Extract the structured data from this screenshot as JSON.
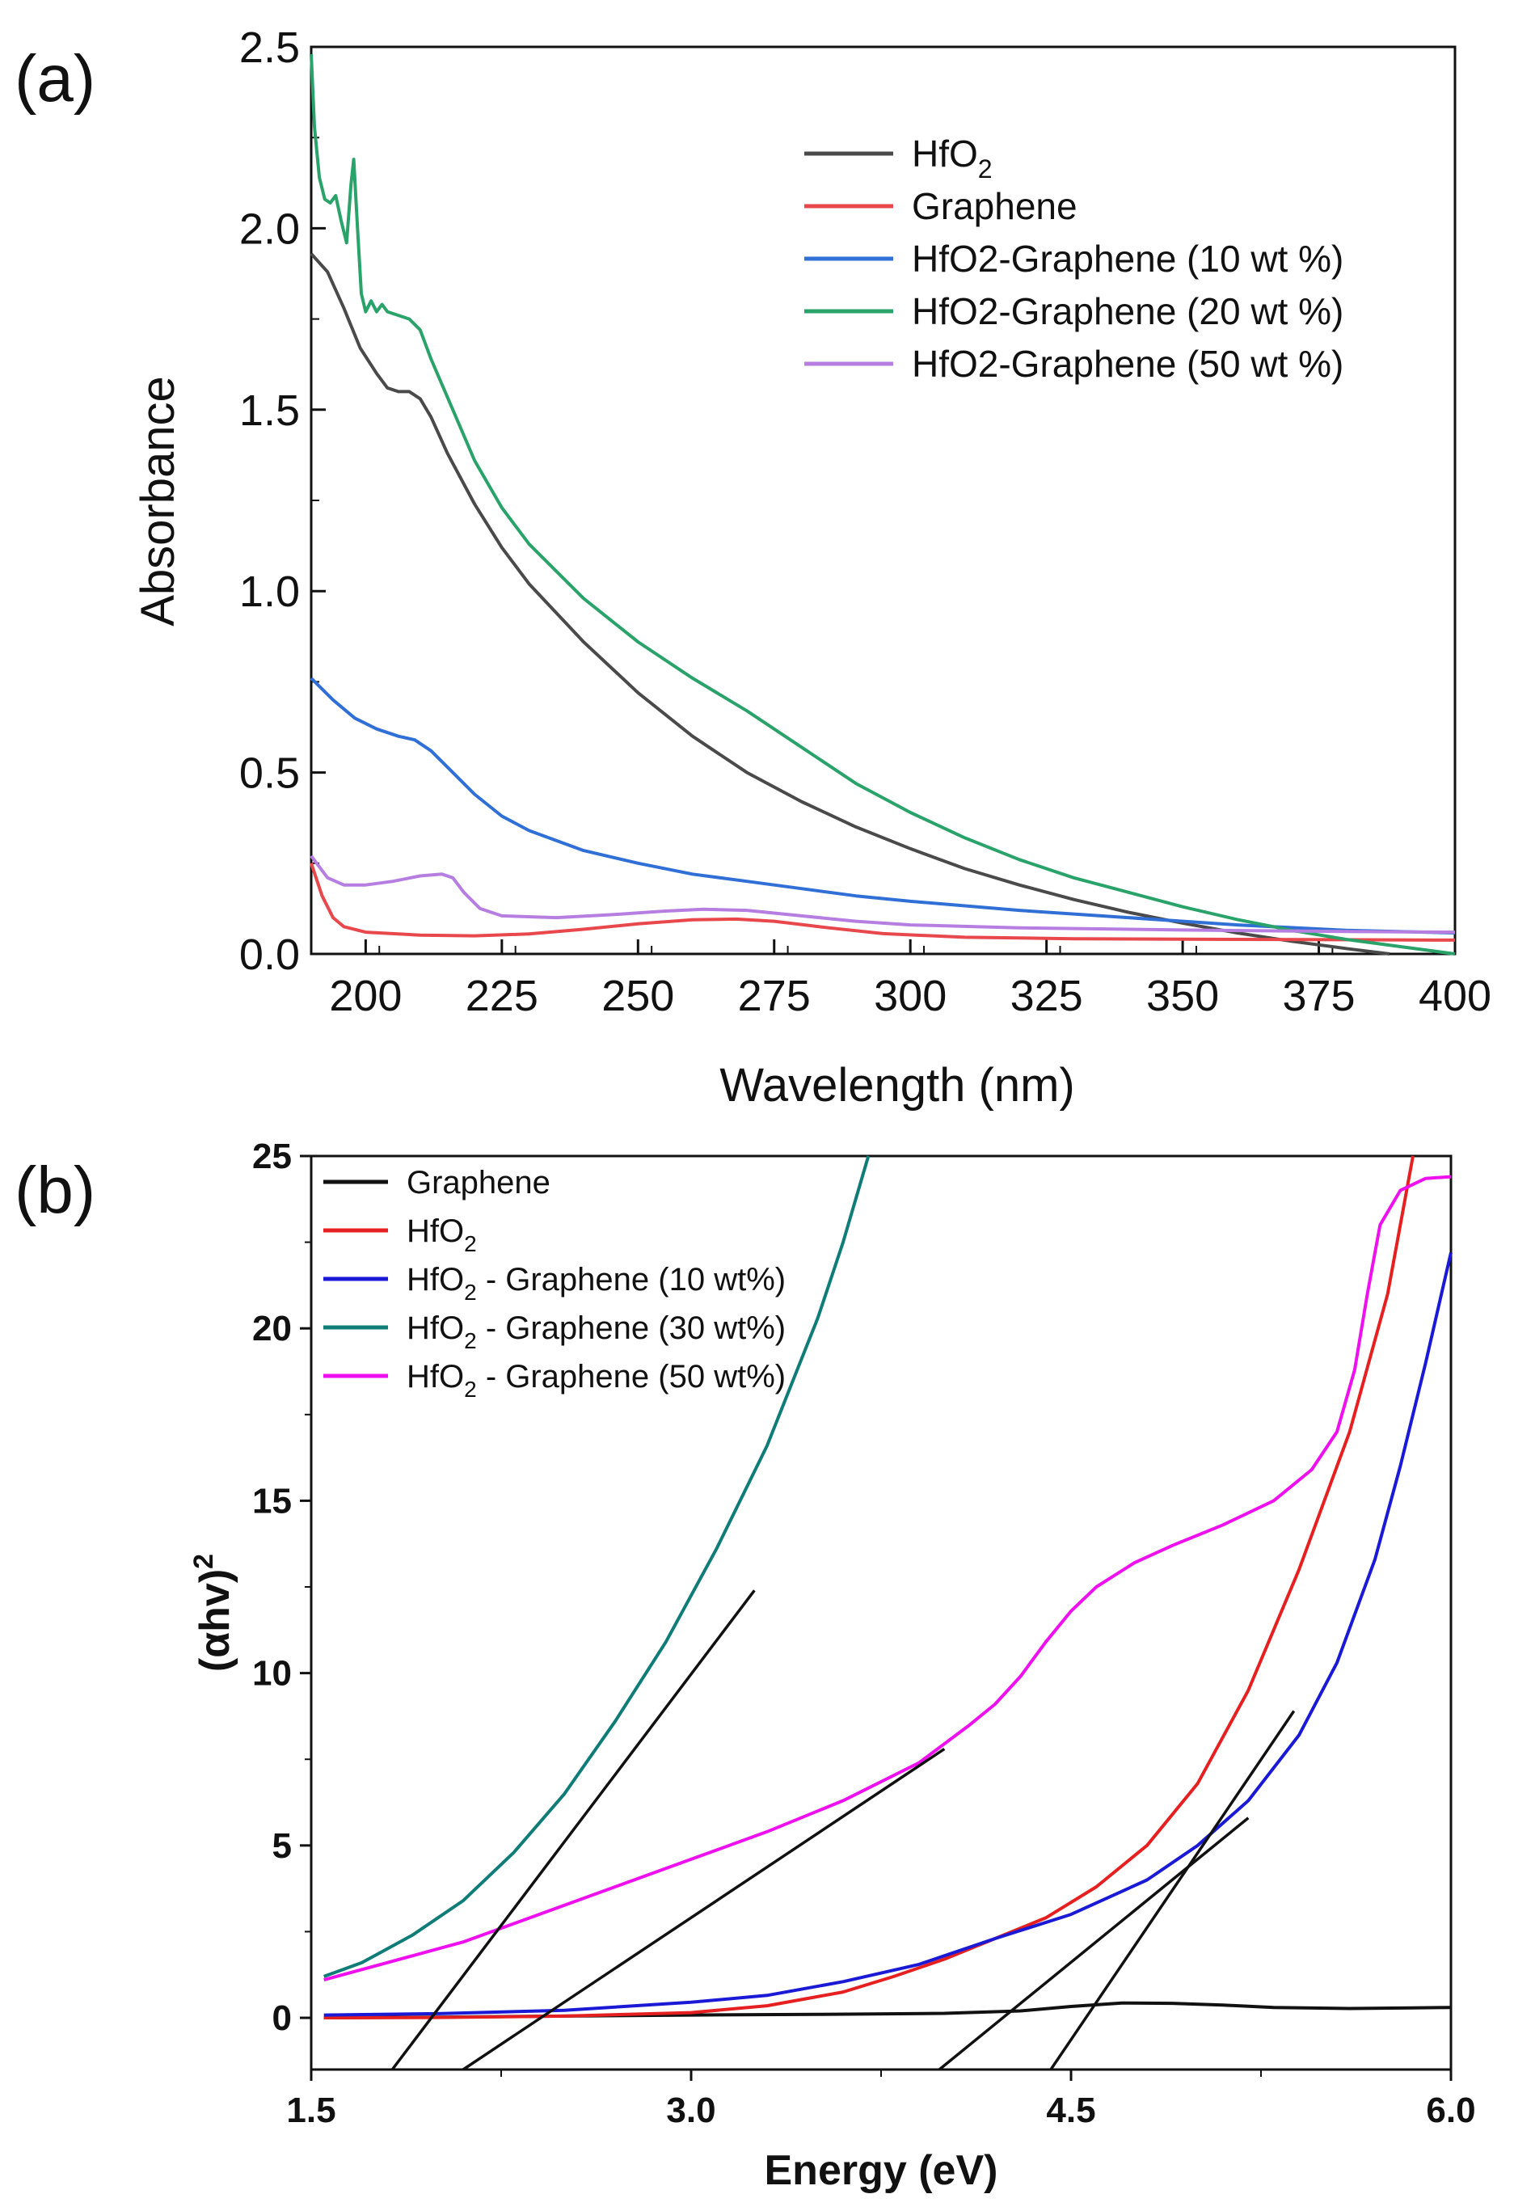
{
  "chart_data": [
    {
      "panel_label": "(a)",
      "type": "line",
      "xlabel": "Wavelength (nm)",
      "ylabel": "Absorbance",
      "xlim": [
        190,
        400
      ],
      "ylim": [
        0,
        2.5
      ],
      "xticks": [
        "200",
        "225",
        "250",
        "275",
        "300",
        "325",
        "350",
        "375",
        "400"
      ],
      "yticks": [
        "0.0",
        "0.5",
        "1.0",
        "1.5",
        "2.0",
        "2.5"
      ],
      "legend_position": "top-right",
      "series": [
        {
          "name": "HfO",
          "sub": "2",
          "color": "#4a4a4a",
          "points": [
            [
              190,
              1.93
            ],
            [
              193,
              1.88
            ],
            [
              196,
              1.78
            ],
            [
              199,
              1.67
            ],
            [
              202,
              1.6
            ],
            [
              204,
              1.56
            ],
            [
              206,
              1.55
            ],
            [
              208,
              1.55
            ],
            [
              210,
              1.53
            ],
            [
              212,
              1.48
            ],
            [
              215,
              1.38
            ],
            [
              220,
              1.24
            ],
            [
              225,
              1.12
            ],
            [
              230,
              1.02
            ],
            [
              235,
              0.94
            ],
            [
              240,
              0.86
            ],
            [
              250,
              0.72
            ],
            [
              260,
              0.6
            ],
            [
              270,
              0.5
            ],
            [
              280,
              0.42
            ],
            [
              290,
              0.35
            ],
            [
              300,
              0.29
            ],
            [
              310,
              0.235
            ],
            [
              320,
              0.19
            ],
            [
              330,
              0.15
            ],
            [
              340,
              0.115
            ],
            [
              350,
              0.085
            ],
            [
              360,
              0.058
            ],
            [
              370,
              0.035
            ],
            [
              380,
              0.015
            ],
            [
              388,
              0.0
            ]
          ]
        },
        {
          "name": "Graphene",
          "sub": "",
          "color": "#e8474c",
          "points": [
            [
              190,
              0.25
            ],
            [
              192,
              0.16
            ],
            [
              194,
              0.1
            ],
            [
              196,
              0.075
            ],
            [
              200,
              0.06
            ],
            [
              210,
              0.052
            ],
            [
              220,
              0.05
            ],
            [
              230,
              0.055
            ],
            [
              240,
              0.068
            ],
            [
              250,
              0.083
            ],
            [
              260,
              0.094
            ],
            [
              268,
              0.096
            ],
            [
              275,
              0.09
            ],
            [
              285,
              0.072
            ],
            [
              295,
              0.056
            ],
            [
              310,
              0.046
            ],
            [
              330,
              0.042
            ],
            [
              360,
              0.04
            ],
            [
              400,
              0.038
            ]
          ]
        },
        {
          "name": "HfO2-Graphene (10 wt %)",
          "sub": "",
          "color": "#2f6fd6",
          "points": [
            [
              190,
              0.76
            ],
            [
              194,
              0.7
            ],
            [
              198,
              0.65
            ],
            [
              202,
              0.62
            ],
            [
              206,
              0.6
            ],
            [
              209,
              0.59
            ],
            [
              212,
              0.56
            ],
            [
              216,
              0.5
            ],
            [
              220,
              0.44
            ],
            [
              225,
              0.38
            ],
            [
              230,
              0.34
            ],
            [
              240,
              0.285
            ],
            [
              250,
              0.25
            ],
            [
              260,
              0.22
            ],
            [
              270,
              0.2
            ],
            [
              280,
              0.18
            ],
            [
              290,
              0.16
            ],
            [
              300,
              0.145
            ],
            [
              320,
              0.12
            ],
            [
              340,
              0.1
            ],
            [
              360,
              0.08
            ],
            [
              380,
              0.065
            ],
            [
              400,
              0.058
            ]
          ]
        },
        {
          "name": "HfO2-Graphene (20 wt %)",
          "sub": "",
          "color": "#2aa36a",
          "points": [
            [
              190,
              2.48
            ],
            [
              190.6,
              2.28
            ],
            [
              191.5,
              2.14
            ],
            [
              192.5,
              2.08
            ],
            [
              193.5,
              2.07
            ],
            [
              194.5,
              2.09
            ],
            [
              195.5,
              2.02
            ],
            [
              196.5,
              1.96
            ],
            [
              197.3,
              2.12
            ],
            [
              197.8,
              2.19
            ],
            [
              198.5,
              2.0
            ],
            [
              199.2,
              1.82
            ],
            [
              200,
              1.77
            ],
            [
              201,
              1.8
            ],
            [
              202,
              1.77
            ],
            [
              203,
              1.79
            ],
            [
              204,
              1.77
            ],
            [
              206,
              1.76
            ],
            [
              208,
              1.75
            ],
            [
              210,
              1.72
            ],
            [
              212,
              1.64
            ],
            [
              216,
              1.5
            ],
            [
              220,
              1.36
            ],
            [
              225,
              1.23
            ],
            [
              230,
              1.13
            ],
            [
              240,
              0.98
            ],
            [
              250,
              0.86
            ],
            [
              260,
              0.76
            ],
            [
              270,
              0.67
            ],
            [
              280,
              0.57
            ],
            [
              290,
              0.47
            ],
            [
              300,
              0.39
            ],
            [
              310,
              0.32
            ],
            [
              320,
              0.26
            ],
            [
              330,
              0.21
            ],
            [
              340,
              0.17
            ],
            [
              350,
              0.13
            ],
            [
              360,
              0.095
            ],
            [
              370,
              0.065
            ],
            [
              380,
              0.04
            ],
            [
              390,
              0.02
            ],
            [
              400,
              0.0
            ]
          ]
        },
        {
          "name": "HfO2-Graphene (50 wt %)",
          "sub": "",
          "color": "#b57ee0",
          "points": [
            [
              190,
              0.27
            ],
            [
              193,
              0.21
            ],
            [
              196,
              0.19
            ],
            [
              200,
              0.19
            ],
            [
              205,
              0.2
            ],
            [
              210,
              0.215
            ],
            [
              214,
              0.22
            ],
            [
              216,
              0.21
            ],
            [
              218,
              0.17
            ],
            [
              221,
              0.125
            ],
            [
              225,
              0.105
            ],
            [
              235,
              0.1
            ],
            [
              245,
              0.108
            ],
            [
              255,
              0.118
            ],
            [
              262,
              0.123
            ],
            [
              270,
              0.12
            ],
            [
              280,
              0.105
            ],
            [
              290,
              0.09
            ],
            [
              300,
              0.08
            ],
            [
              320,
              0.072
            ],
            [
              350,
              0.066
            ],
            [
              380,
              0.062
            ],
            [
              400,
              0.06
            ]
          ]
        }
      ]
    },
    {
      "panel_label": "(b)",
      "type": "line",
      "xlabel": "Energy (eV)",
      "ylabel": "(αhv)",
      "ylabel_sup": "2",
      "xlim": [
        1.5,
        6.0
      ],
      "ylim": [
        -1.5,
        25
      ],
      "xticks": [
        "1.5",
        "3.0",
        "4.5",
        "6.0"
      ],
      "yticks": [
        "0",
        "5",
        "10",
        "15",
        "20",
        "25"
      ],
      "legend_position": "top-left",
      "series": [
        {
          "name": "Graphene",
          "sub": "",
          "after": "",
          "color": "#111111",
          "points": [
            [
              1.55,
              0.0
            ],
            [
              2.0,
              0.02
            ],
            [
              2.5,
              0.05
            ],
            [
              3.0,
              0.08
            ],
            [
              3.5,
              0.1
            ],
            [
              4.0,
              0.13
            ],
            [
              4.3,
              0.2
            ],
            [
              4.5,
              0.33
            ],
            [
              4.7,
              0.43
            ],
            [
              4.9,
              0.42
            ],
            [
              5.1,
              0.37
            ],
            [
              5.3,
              0.3
            ],
            [
              5.6,
              0.27
            ],
            [
              5.85,
              0.29
            ],
            [
              6.0,
              0.3
            ]
          ]
        },
        {
          "name": "HfO",
          "sub": "2",
          "after": "",
          "color": "#e62020",
          "points": [
            [
              1.55,
              0.0
            ],
            [
              2.0,
              0.01
            ],
            [
              2.5,
              0.05
            ],
            [
              3.0,
              0.15
            ],
            [
              3.3,
              0.35
            ],
            [
              3.6,
              0.75
            ],
            [
              3.8,
              1.2
            ],
            [
              4.0,
              1.7
            ],
            [
              4.2,
              2.3
            ],
            [
              4.4,
              2.9
            ],
            [
              4.6,
              3.8
            ],
            [
              4.8,
              5.0
            ],
            [
              5.0,
              6.8
            ],
            [
              5.2,
              9.5
            ],
            [
              5.4,
              13.0
            ],
            [
              5.6,
              17.0
            ],
            [
              5.75,
              21.0
            ],
            [
              5.85,
              25.0
            ]
          ]
        },
        {
          "name": "HfO",
          "sub": "2",
          "after": " - Graphene (10 wt%)",
          "color": "#1a1ad6",
          "points": [
            [
              1.55,
              0.08
            ],
            [
              2.0,
              0.12
            ],
            [
              2.5,
              0.22
            ],
            [
              3.0,
              0.45
            ],
            [
              3.3,
              0.65
            ],
            [
              3.6,
              1.05
            ],
            [
              3.9,
              1.55
            ],
            [
              4.2,
              2.3
            ],
            [
              4.5,
              3.0
            ],
            [
              4.8,
              4.0
            ],
            [
              5.0,
              5.0
            ],
            [
              5.2,
              6.3
            ],
            [
              5.4,
              8.2
            ],
            [
              5.55,
              10.3
            ],
            [
              5.7,
              13.3
            ],
            [
              5.8,
              16.0
            ],
            [
              5.9,
              19.0
            ],
            [
              6.0,
              22.2
            ]
          ]
        },
        {
          "name": "HfO",
          "sub": "2",
          "after": " - Graphene (30 wt%)",
          "color": "#0f7c78",
          "points": [
            [
              1.55,
              1.2
            ],
            [
              1.7,
              1.6
            ],
            [
              1.9,
              2.4
            ],
            [
              2.1,
              3.4
            ],
            [
              2.3,
              4.8
            ],
            [
              2.5,
              6.5
            ],
            [
              2.7,
              8.6
            ],
            [
              2.9,
              10.9
            ],
            [
              3.1,
              13.6
            ],
            [
              3.3,
              16.6
            ],
            [
              3.5,
              20.3
            ],
            [
              3.6,
              22.5
            ],
            [
              3.7,
              25.0
            ]
          ]
        },
        {
          "name": "HfO",
          "sub": "2",
          "after": " - Graphene (50 wt%)",
          "color": "#ee10ee",
          "points": [
            [
              1.55,
              1.1
            ],
            [
              1.8,
              1.6
            ],
            [
              2.1,
              2.2
            ],
            [
              2.4,
              3.0
            ],
            [
              2.7,
              3.8
            ],
            [
              3.0,
              4.6
            ],
            [
              3.3,
              5.4
            ],
            [
              3.6,
              6.3
            ],
            [
              3.9,
              7.4
            ],
            [
              4.1,
              8.5
            ],
            [
              4.2,
              9.1
            ],
            [
              4.3,
              9.9
            ],
            [
              4.4,
              10.9
            ],
            [
              4.5,
              11.8
            ],
            [
              4.6,
              12.5
            ],
            [
              4.75,
              13.2
            ],
            [
              4.9,
              13.7
            ],
            [
              5.1,
              14.3
            ],
            [
              5.3,
              15.0
            ],
            [
              5.45,
              15.9
            ],
            [
              5.55,
              17.0
            ],
            [
              5.62,
              18.8
            ],
            [
              5.67,
              21.0
            ],
            [
              5.72,
              23.0
            ],
            [
              5.8,
              24.0
            ],
            [
              5.9,
              24.35
            ],
            [
              6.0,
              24.4
            ]
          ]
        }
      ],
      "tangent_lines": [
        {
          "color": "#111111",
          "from": [
            1.82,
            -1.5
          ],
          "to": [
            3.25,
            12.4
          ]
        },
        {
          "color": "#111111",
          "from": [
            2.1,
            -1.5
          ],
          "to": [
            4.0,
            7.8
          ]
        },
        {
          "color": "#111111",
          "from": [
            3.98,
            -1.5
          ],
          "to": [
            5.2,
            5.8
          ]
        },
        {
          "color": "#111111",
          "from": [
            4.42,
            -1.5
          ],
          "to": [
            5.38,
            8.9
          ]
        }
      ]
    }
  ]
}
